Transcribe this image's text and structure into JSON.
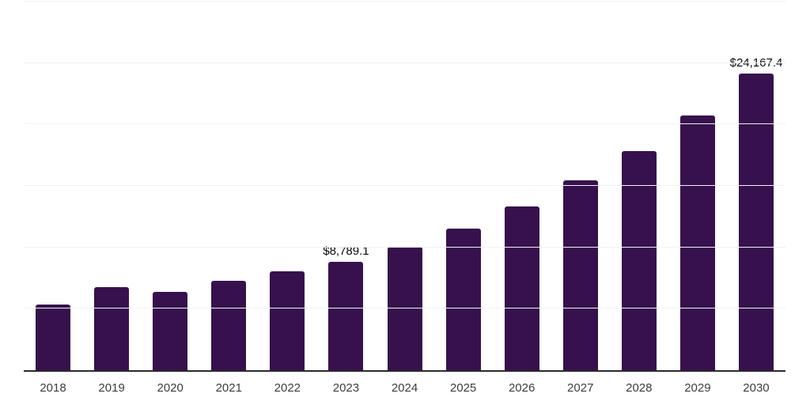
{
  "chart_data": {
    "type": "bar",
    "title": "",
    "xlabel": "",
    "ylabel": "",
    "categories": [
      "2018",
      "2019",
      "2020",
      "2021",
      "2022",
      "2023",
      "2024",
      "2025",
      "2026",
      "2027",
      "2028",
      "2029",
      "2030"
    ],
    "values": [
      5370,
      6730,
      6350,
      7300,
      8050,
      8789.1,
      10050,
      11550,
      13340,
      15420,
      17850,
      20750,
      24167.4
    ],
    "data_labels": [
      null,
      null,
      null,
      null,
      null,
      "$8,789.1",
      null,
      null,
      null,
      null,
      null,
      null,
      "$24,167.4"
    ],
    "ylim": [
      0,
      30000
    ],
    "grid_step": 5000,
    "grid": "horizontal-only",
    "legend": "none",
    "y_tick_labels_visible": false,
    "colors": {
      "bar": "#36114d",
      "axis_line": "#2b2b2b",
      "gridline": "#f1f1f3",
      "data_label": "#0a0a0a",
      "tick_label": "#3d3d3d",
      "background": "#ffffff"
    }
  }
}
